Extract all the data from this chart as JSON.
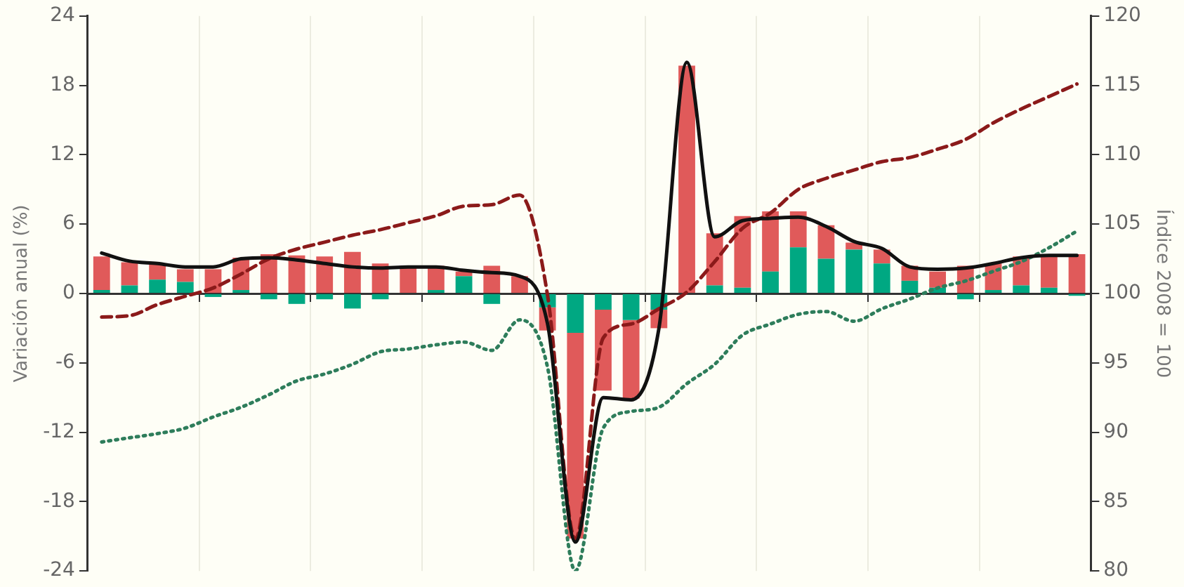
{
  "chart_data": {
    "type": "bar",
    "stacked": true,
    "ylabel": "Variación anual (%)",
    "y2label": "Índice 2008 = 100",
    "categories": [
      null,
      null,
      null,
      null,
      null,
      null,
      null,
      null,
      null,
      null,
      null,
      null,
      null,
      null,
      null,
      null,
      null,
      null,
      null,
      null,
      null,
      null,
      null,
      null,
      null,
      null,
      null,
      null,
      null,
      null,
      null,
      null,
      null,
      null,
      null,
      null
    ],
    "ylim": [
      -24,
      24
    ],
    "yticks": [
      -24,
      -18,
      -12,
      -6,
      0,
      6,
      12,
      18,
      24
    ],
    "y2lim": [
      80,
      120
    ],
    "y2ticks": [
      80,
      85,
      90,
      95,
      100,
      105,
      110,
      115,
      120
    ],
    "tick_labels": "y",
    "legend": false,
    "grid": "x",
    "marker": "none",
    "series": [
      {
        "color": "#00a882",
        "values": [
          0.3,
          0.7,
          1.2,
          1.0,
          -0.3,
          0.3,
          -0.5,
          -0.9,
          -0.5,
          -1.3,
          -0.5,
          0,
          0.3,
          1.5,
          -0.9,
          0,
          -1.2,
          -3.4,
          -1.4,
          -2.3,
          -1.4,
          0,
          0.7,
          0.5,
          1.9,
          4.0,
          3.0,
          3.8,
          2.6,
          1.1,
          0.5,
          -0.5,
          0.3,
          0.7,
          0.5,
          -0.2
        ]
      },
      {
        "color": "#e05a5a",
        "values": [
          2.9,
          2.0,
          1.4,
          1.1,
          2.1,
          2.8,
          3.4,
          3.3,
          3.2,
          3.6,
          2.6,
          2.4,
          2.1,
          0.4,
          2.4,
          1.5,
          -2.0,
          -17.8,
          -7.0,
          -6.8,
          -1.6,
          19.7,
          4.5,
          6.2,
          5.2,
          3.1,
          2.9,
          0.6,
          1.2,
          1.3,
          1.4,
          2.4,
          2.3,
          2.5,
          2.9,
          3.4
        ]
      },
      {
        "type": "line",
        "color": "#111111",
        "line_style": "solid",
        "values": [
          3.5,
          2.8,
          2.6,
          2.3,
          2.3,
          3.0,
          3.1,
          2.9,
          2.6,
          2.3,
          2.2,
          2.3,
          2.3,
          2.0,
          1.8,
          1.5,
          -2.6,
          -21.5,
          -9.0,
          -9.2,
          -3.0,
          20.0,
          4.9,
          6.3,
          6.5,
          6.6,
          5.8,
          4.5,
          3.9,
          2.3,
          2.1,
          2.2,
          2.6,
          3.1,
          3.3,
          3.3
        ]
      },
      {
        "type": "line",
        "axis": "y2",
        "color": "#8b1a1a",
        "line_style": "dashed",
        "values": [
          98.3,
          98.4,
          99.2,
          99.8,
          100.4,
          101.4,
          102.5,
          103.2,
          103.7,
          104.2,
          104.6,
          105.1,
          105.6,
          106.3,
          106.4,
          107.1,
          99.9,
          82.3,
          96.8,
          97.8,
          98.9,
          100.1,
          102.3,
          104.7,
          105.8,
          107.5,
          108.3,
          108.9,
          109.5,
          109.8,
          110.4,
          111.1,
          112.3,
          113.3,
          114.2,
          115.1
        ]
      },
      {
        "type": "line",
        "axis": "y2",
        "color": "#2e7d5b",
        "line_style": "dotted",
        "values": [
          89.3,
          89.6,
          89.9,
          90.3,
          91.1,
          91.8,
          92.7,
          93.7,
          94.2,
          94.9,
          95.8,
          96.0,
          96.3,
          96.5,
          95.9,
          98.1,
          94.7,
          80.0,
          90.3,
          91.5,
          91.8,
          93.5,
          94.9,
          97.0,
          97.8,
          98.5,
          98.7,
          98.0,
          98.9,
          99.6,
          100.4,
          100.9,
          101.6,
          102.3,
          103.3,
          104.5
        ]
      }
    ]
  }
}
